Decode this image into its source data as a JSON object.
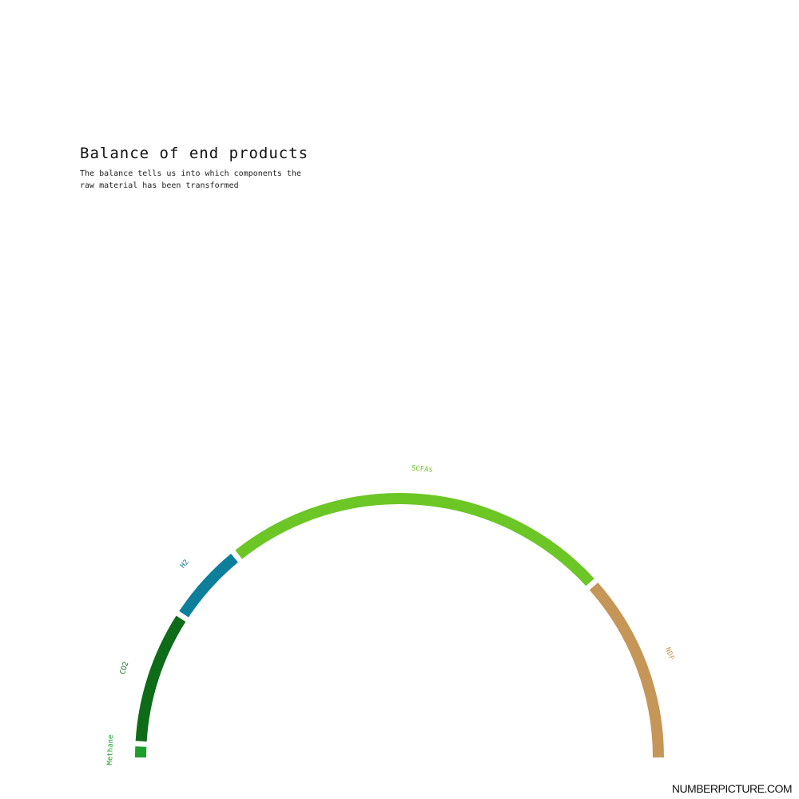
{
  "header": {
    "title": "Balance of end products",
    "subtitle": "The balance tells us into which components the raw material has been transformed"
  },
  "brand": "NUMBERPICTURE.COM",
  "chart_data": {
    "type": "pie",
    "style": "semicircle-arc",
    "slices": [
      {
        "label": "Methane",
        "value": 1,
        "color": "#1e9e2c"
      },
      {
        "label": "CO2",
        "value": 10,
        "color": "#0e6b18"
      },
      {
        "label": "H2",
        "value": 6,
        "color": "#0e7f9a"
      },
      {
        "label": "SCFAs",
        "value": 29,
        "color": "#6cc625"
      },
      {
        "label": "NDF",
        "value": 14,
        "color": "#c59657"
      }
    ]
  }
}
